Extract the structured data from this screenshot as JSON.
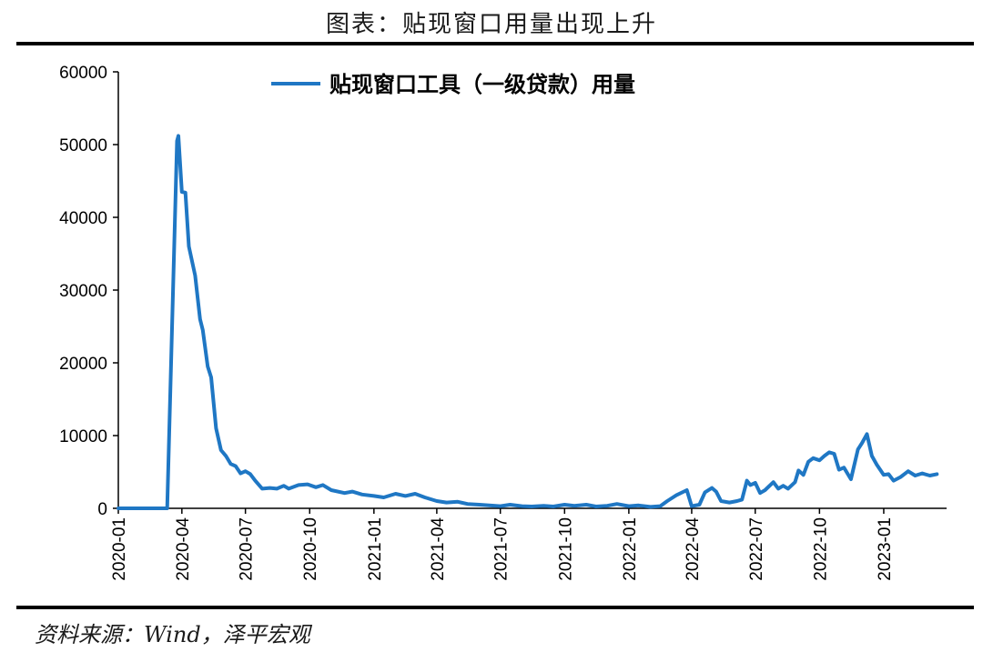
{
  "header": {
    "title": "图表：贴现窗口用量出现上升",
    "source": "资料来源：Wind，泽平宏观"
  },
  "colors": {
    "line": "#1f77c4",
    "axis": "#000000"
  },
  "chart_data": {
    "type": "line",
    "title": "",
    "xlabel": "",
    "ylabel": "",
    "ylim": [
      0,
      60000
    ],
    "yticks": [
      0,
      10000,
      20000,
      30000,
      40000,
      50000,
      60000
    ],
    "xlim": [
      "2020-01-01",
      "2023-04-01"
    ],
    "xticks": [
      "2020-01",
      "2020-04",
      "2020-07",
      "2020-10",
      "2021-01",
      "2021-04",
      "2021-07",
      "2021-10",
      "2022-01",
      "2022-04",
      "2022-07",
      "2022-10",
      "2023-01"
    ],
    "grid": false,
    "legend_position": "top",
    "series": [
      {
        "name": "贴现窗口工具（一级贷款）用量",
        "points": [
          [
            "2020-01-01",
            0
          ],
          [
            "2020-02-15",
            0
          ],
          [
            "2020-03-11",
            0
          ],
          [
            "2020-03-25",
            50500
          ],
          [
            "2020-03-27",
            51200
          ],
          [
            "2020-04-01",
            43500
          ],
          [
            "2020-04-06",
            43400
          ],
          [
            "2020-04-11",
            36000
          ],
          [
            "2020-04-20",
            32000
          ],
          [
            "2020-04-27",
            26000
          ],
          [
            "2020-05-01",
            24500
          ],
          [
            "2020-05-08",
            19500
          ],
          [
            "2020-05-13",
            18000
          ],
          [
            "2020-05-20",
            11000
          ],
          [
            "2020-05-27",
            8000
          ],
          [
            "2020-06-03",
            7200
          ],
          [
            "2020-06-10",
            6100
          ],
          [
            "2020-06-17",
            5800
          ],
          [
            "2020-06-24",
            4800
          ],
          [
            "2020-07-01",
            5100
          ],
          [
            "2020-07-08",
            4700
          ],
          [
            "2020-07-15",
            3800
          ],
          [
            "2020-07-25",
            2700
          ],
          [
            "2020-08-05",
            2800
          ],
          [
            "2020-08-15",
            2700
          ],
          [
            "2020-08-25",
            3100
          ],
          [
            "2020-09-01",
            2700
          ],
          [
            "2020-09-15",
            3200
          ],
          [
            "2020-09-28",
            3300
          ],
          [
            "2020-10-10",
            2900
          ],
          [
            "2020-10-20",
            3200
          ],
          [
            "2020-11-01",
            2500
          ],
          [
            "2020-11-20",
            2100
          ],
          [
            "2020-12-01",
            2300
          ],
          [
            "2020-12-15",
            1900
          ],
          [
            "2021-01-01",
            1700
          ],
          [
            "2021-01-15",
            1500
          ],
          [
            "2021-02-01",
            2000
          ],
          [
            "2021-02-15",
            1700
          ],
          [
            "2021-03-01",
            2000
          ],
          [
            "2021-03-15",
            1500
          ],
          [
            "2021-04-01",
            1000
          ],
          [
            "2021-04-15",
            800
          ],
          [
            "2021-05-01",
            900
          ],
          [
            "2021-05-15",
            600
          ],
          [
            "2021-06-01",
            500
          ],
          [
            "2021-06-15",
            400
          ],
          [
            "2021-07-01",
            300
          ],
          [
            "2021-07-15",
            500
          ],
          [
            "2021-08-01",
            300
          ],
          [
            "2021-08-15",
            250
          ],
          [
            "2021-09-01",
            350
          ],
          [
            "2021-09-15",
            250
          ],
          [
            "2021-10-01",
            500
          ],
          [
            "2021-10-15",
            350
          ],
          [
            "2021-11-01",
            500
          ],
          [
            "2021-11-15",
            250
          ],
          [
            "2021-12-01",
            350
          ],
          [
            "2021-12-15",
            600
          ],
          [
            "2022-01-01",
            300
          ],
          [
            "2022-01-15",
            400
          ],
          [
            "2022-02-01",
            200
          ],
          [
            "2022-02-15",
            300
          ],
          [
            "2022-02-25",
            1000
          ],
          [
            "2022-03-10",
            1800
          ],
          [
            "2022-03-25",
            2500
          ],
          [
            "2022-04-01",
            300
          ],
          [
            "2022-04-12",
            500
          ],
          [
            "2022-04-20",
            2200
          ],
          [
            "2022-04-30",
            2800
          ],
          [
            "2022-05-06",
            2300
          ],
          [
            "2022-05-13",
            1000
          ],
          [
            "2022-05-25",
            800
          ],
          [
            "2022-06-05",
            1000
          ],
          [
            "2022-06-12",
            1200
          ],
          [
            "2022-06-19",
            3800
          ],
          [
            "2022-06-24",
            3200
          ],
          [
            "2022-07-01",
            3500
          ],
          [
            "2022-07-08",
            2100
          ],
          [
            "2022-07-15",
            2500
          ],
          [
            "2022-07-27",
            3600
          ],
          [
            "2022-08-03",
            2700
          ],
          [
            "2022-08-10",
            3100
          ],
          [
            "2022-08-17",
            2700
          ],
          [
            "2022-08-27",
            3600
          ],
          [
            "2022-09-01",
            5200
          ],
          [
            "2022-09-08",
            4600
          ],
          [
            "2022-09-15",
            6400
          ],
          [
            "2022-09-22",
            6900
          ],
          [
            "2022-10-01",
            6600
          ],
          [
            "2022-10-08",
            7200
          ],
          [
            "2022-10-15",
            7700
          ],
          [
            "2022-10-22",
            7500
          ],
          [
            "2022-10-29",
            5300
          ],
          [
            "2022-11-05",
            5600
          ],
          [
            "2022-11-15",
            4000
          ],
          [
            "2022-11-25",
            8100
          ],
          [
            "2022-12-01",
            9000
          ],
          [
            "2022-12-08",
            10200
          ],
          [
            "2022-12-15",
            7200
          ],
          [
            "2022-12-22",
            6000
          ],
          [
            "2023-01-01",
            4600
          ],
          [
            "2023-01-08",
            4700
          ],
          [
            "2023-01-15",
            3800
          ],
          [
            "2023-01-25",
            4300
          ],
          [
            "2023-02-05",
            5100
          ],
          [
            "2023-02-15",
            4500
          ],
          [
            "2023-02-25",
            4800
          ],
          [
            "2023-03-08",
            4500
          ],
          [
            "2023-03-18",
            4700
          ]
        ]
      }
    ]
  }
}
